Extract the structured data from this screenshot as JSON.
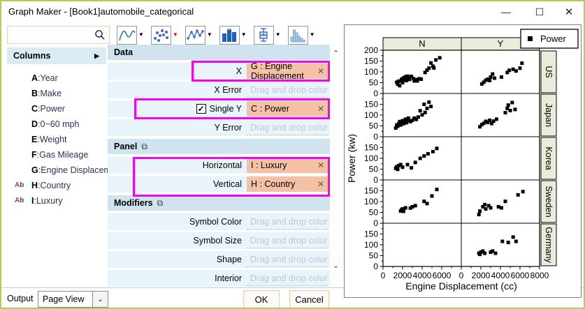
{
  "window": {
    "title": "Graph Maker - [Book1]automobile_categorical"
  },
  "titlebar_icons": {
    "minimize": "—",
    "maximize": "☐",
    "close": "✕"
  },
  "toolbar": {
    "search_value": "",
    "search_placeholder": "",
    "buttons": [
      {
        "name": "line-plot",
        "icon": "line",
        "arrow_color": "#000000"
      },
      {
        "name": "scatter-plot",
        "icon": "scatter",
        "arrow_color": "#ff0000"
      },
      {
        "name": "line-symbol-plot",
        "icon": "linesymbol",
        "arrow_color": "#000000"
      },
      {
        "name": "column-plot",
        "icon": "column",
        "arrow_color": "#000000"
      },
      {
        "name": "box-plot",
        "icon": "box",
        "arrow_color": "#000000"
      },
      {
        "name": "histogram-plot",
        "icon": "histogram",
        "arrow_color": "#000000"
      }
    ]
  },
  "columns_panel": {
    "header": "Columns",
    "expand_arrow": "▶",
    "items": [
      {
        "prefix": "",
        "letter": "A",
        "name": "Year"
      },
      {
        "prefix": "",
        "letter": "B",
        "name": "Make"
      },
      {
        "prefix": "",
        "letter": "C",
        "name": "Power"
      },
      {
        "prefix": "",
        "letter": "D",
        "name": "0~60 mph"
      },
      {
        "prefix": "",
        "letter": "E",
        "name": "Weight"
      },
      {
        "prefix": "",
        "letter": "F",
        "name": "Gas Mileage"
      },
      {
        "prefix": "",
        "letter": "G",
        "name": "Engine Displacem..."
      },
      {
        "prefix": "Ab",
        "letter": "H",
        "name": "Country"
      },
      {
        "prefix": "Ab",
        "letter": "I",
        "name": "Luxury"
      }
    ]
  },
  "form": {
    "sections": [
      {
        "title": "Data",
        "has_icon": false,
        "rows": [
          {
            "label": "X",
            "value": "G : Engine Displacement",
            "highlight": "narrow"
          },
          {
            "label": "X Error",
            "placeholder": "Drag and drop column"
          },
          {
            "label": "Single Y",
            "checkbox": true,
            "checked": true,
            "value": "C : Power",
            "highlight": "wide"
          },
          {
            "label": "Y Error",
            "placeholder": "Drag and drop column"
          }
        ]
      },
      {
        "title": "Panel",
        "has_icon": true,
        "group_highlight": true,
        "rows": [
          {
            "label": "Horizontal",
            "value": "I : Luxury"
          },
          {
            "label": "Vertical",
            "value": "H : Country"
          }
        ]
      },
      {
        "title": "Modifiers",
        "has_icon": true,
        "rows": [
          {
            "label": "Symbol Color",
            "placeholder": "Drag and drop column"
          },
          {
            "label": "Symbol Size",
            "placeholder": "Drag and drop column"
          },
          {
            "label": "Shape",
            "placeholder": "Drag and drop column"
          },
          {
            "label": "Interior",
            "placeholder": "Drag and drop column"
          }
        ]
      }
    ],
    "checkmark": "✓",
    "close_glyph": "✕",
    "section_icon_glyph": "⧉"
  },
  "footer": {
    "output_label": "Output",
    "output_value": "Page View",
    "ok": "OK",
    "cancel": "Cancel"
  },
  "accent_colors": {
    "window_border": "#b5cc52",
    "highlight_outline": "#f402f4",
    "assigned_field_fill": "#f5c1a5",
    "section_header_fill": "#cfe4ef",
    "row_fill": "#e9f3fa",
    "trellis_label_fill": "#e7edd8",
    "toolbar_active_arrow": "#ff0000"
  },
  "chart_data": {
    "type": "scatter",
    "title": "",
    "xlabel": "Engine Displacement (cc)",
    "ylabel": "Power (kw)",
    "xlim": [
      0,
      8000
    ],
    "ylim": [
      0,
      200
    ],
    "x_ticks": [
      0,
      2000,
      4000,
      6000,
      8000
    ],
    "y_ticks": [
      0,
      50,
      100,
      150,
      200
    ],
    "grid": false,
    "legend": {
      "position": "top-right",
      "entries": [
        {
          "label": "Power",
          "marker": "square",
          "color": "#000000"
        }
      ]
    },
    "trellis": {
      "columns": [
        "N",
        "Y"
      ],
      "rows": [
        "US",
        "Japan",
        "Korea",
        "Sweden",
        "Germany"
      ]
    },
    "panels": [
      {
        "row": "US",
        "col": "N",
        "points": [
          [
            1400,
            52
          ],
          [
            1500,
            43
          ],
          [
            1600,
            57
          ],
          [
            1700,
            36
          ],
          [
            1800,
            57
          ],
          [
            1900,
            66
          ],
          [
            2000,
            50
          ],
          [
            2100,
            72
          ],
          [
            2200,
            62
          ],
          [
            2300,
            77
          ],
          [
            2400,
            60
          ],
          [
            2500,
            80
          ],
          [
            2600,
            73
          ],
          [
            2700,
            65
          ],
          [
            2900,
            79
          ],
          [
            3100,
            69
          ],
          [
            3200,
            58
          ],
          [
            3400,
            64
          ],
          [
            3500,
            58
          ],
          [
            3700,
            68
          ],
          [
            3900,
            66
          ],
          [
            4300,
            97
          ],
          [
            4500,
            108
          ],
          [
            4700,
            117
          ],
          [
            4900,
            141
          ],
          [
            5100,
            126
          ],
          [
            5200,
            118
          ],
          [
            5400,
            155
          ],
          [
            5800,
            165
          ]
        ]
      },
      {
        "row": "US",
        "col": "Y",
        "points": [
          [
            2100,
            44
          ],
          [
            2300,
            52
          ],
          [
            2500,
            61
          ],
          [
            2700,
            66
          ],
          [
            2900,
            60
          ],
          [
            3000,
            76
          ],
          [
            3200,
            90
          ],
          [
            3400,
            71
          ],
          [
            4100,
            76
          ],
          [
            4700,
            97
          ],
          [
            4900,
            107
          ],
          [
            5300,
            112
          ],
          [
            5600,
            104
          ],
          [
            6000,
            117
          ],
          [
            6200,
            140
          ]
        ]
      },
      {
        "row": "Japan",
        "col": "N",
        "points": [
          [
            1300,
            40
          ],
          [
            1400,
            54
          ],
          [
            1500,
            48
          ],
          [
            1600,
            60
          ],
          [
            1700,
            70
          ],
          [
            1800,
            54
          ],
          [
            1900,
            64
          ],
          [
            2000,
            74
          ],
          [
            2100,
            60
          ],
          [
            2200,
            70
          ],
          [
            2300,
            81
          ],
          [
            2400,
            65
          ],
          [
            2500,
            76
          ],
          [
            2600,
            86
          ],
          [
            2800,
            70
          ],
          [
            3000,
            76
          ],
          [
            3200,
            86
          ],
          [
            3400,
            80
          ],
          [
            3600,
            91
          ],
          [
            3800,
            120
          ],
          [
            4000,
            101
          ],
          [
            4200,
            150
          ],
          [
            4300,
            112
          ],
          [
            4500,
            131
          ],
          [
            4700,
            160
          ],
          [
            4900,
            140
          ]
        ]
      },
      {
        "row": "Japan",
        "col": "Y",
        "points": [
          [
            1900,
            46
          ],
          [
            2100,
            56
          ],
          [
            2300,
            62
          ],
          [
            2500,
            71
          ],
          [
            2700,
            66
          ],
          [
            2900,
            76
          ],
          [
            3100,
            61
          ],
          [
            3300,
            72
          ],
          [
            3600,
            81
          ],
          [
            4500,
            111
          ],
          [
            4700,
            131
          ],
          [
            4800,
            146
          ],
          [
            5000,
            121
          ],
          [
            5200,
            158
          ],
          [
            5500,
            126
          ]
        ]
      },
      {
        "row": "Korea",
        "col": "N",
        "points": [
          [
            1300,
            54
          ],
          [
            1400,
            61
          ],
          [
            1500,
            49
          ],
          [
            1600,
            66
          ],
          [
            1800,
            71
          ],
          [
            2000,
            59
          ],
          [
            2500,
            71
          ],
          [
            2900,
            56
          ],
          [
            3300,
            81
          ],
          [
            3800,
            100
          ],
          [
            4200,
            111
          ],
          [
            4600,
            121
          ],
          [
            5100,
            131
          ],
          [
            5500,
            146
          ]
        ]
      },
      {
        "row": "Korea",
        "col": "Y",
        "points": []
      },
      {
        "row": "Sweden",
        "col": "N",
        "points": [
          [
            1800,
            56
          ],
          [
            1900,
            62
          ],
          [
            2000,
            66
          ],
          [
            2100,
            55
          ],
          [
            2300,
            71
          ],
          [
            2800,
            70
          ],
          [
            3000,
            76
          ],
          [
            3300,
            81
          ],
          [
            4200,
            101
          ],
          [
            4500,
            91
          ],
          [
            5000,
            126
          ],
          [
            5500,
            156
          ]
        ]
      },
      {
        "row": "Sweden",
        "col": "Y",
        "points": [
          [
            1800,
            40
          ],
          [
            1900,
            56
          ],
          [
            2200,
            76
          ],
          [
            2400,
            86
          ],
          [
            2500,
            66
          ],
          [
            2800,
            81
          ],
          [
            3000,
            71
          ],
          [
            3800,
            76
          ],
          [
            4100,
            71
          ],
          [
            4500,
            101
          ],
          [
            5800,
            131
          ],
          [
            6300,
            146
          ]
        ]
      },
      {
        "row": "Germany",
        "col": "N",
        "points": []
      },
      {
        "row": "Germany",
        "col": "Y",
        "points": [
          [
            1800,
            61
          ],
          [
            1900,
            56
          ],
          [
            2000,
            66
          ],
          [
            2200,
            71
          ],
          [
            2400,
            61
          ],
          [
            3000,
            66
          ],
          [
            3200,
            71
          ],
          [
            3500,
            61
          ],
          [
            4200,
            116
          ],
          [
            4800,
            111
          ],
          [
            5300,
            136
          ],
          [
            5600,
            116
          ]
        ]
      }
    ]
  }
}
